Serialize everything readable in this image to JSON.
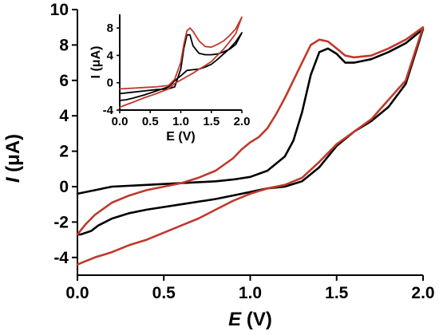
{
  "chart_data": [
    {
      "type": "line",
      "xlabel_symbol": "E",
      "xlabel_unit": " (V)",
      "ylabel_symbol": "I",
      "ylabel_unit": " (μA)",
      "xlim": [
        0.0,
        2.0
      ],
      "ylim": [
        -5,
        10
      ],
      "xticks": [
        "0.0",
        "0.5",
        "1.0",
        "1.5",
        "2.0"
      ],
      "yticks": [
        "-4",
        "-2",
        "0",
        "2",
        "4",
        "6",
        "8",
        "10"
      ],
      "grid": false,
      "series": [
        {
          "color": "#000000",
          "x": [
            0.0,
            0.2,
            0.4,
            0.6,
            0.8,
            0.9,
            1.0,
            1.1,
            1.2,
            1.25,
            1.3,
            1.35,
            1.4,
            1.45,
            1.5,
            1.55,
            1.6,
            1.7,
            1.8,
            1.9,
            2.0,
            1.9,
            1.8,
            1.7,
            1.6,
            1.5,
            1.4,
            1.3,
            1.2,
            1.1,
            1.0,
            0.9,
            0.8,
            0.6,
            0.4,
            0.3,
            0.2,
            0.12,
            0.08,
            0.05,
            0.02,
            0.0
          ],
          "y": [
            -0.4,
            0.0,
            0.1,
            0.2,
            0.3,
            0.4,
            0.55,
            0.9,
            1.7,
            2.6,
            4.2,
            6.3,
            7.6,
            7.8,
            7.5,
            7.0,
            7.0,
            7.2,
            7.6,
            8.1,
            8.9,
            5.8,
            4.5,
            3.7,
            3.1,
            2.3,
            1.1,
            0.3,
            0.0,
            -0.1,
            -0.3,
            -0.5,
            -0.7,
            -1.0,
            -1.3,
            -1.5,
            -1.8,
            -2.2,
            -2.5,
            -2.6,
            -2.7,
            -2.7
          ]
        },
        {
          "color": "#c0392b",
          "x": [
            0.0,
            0.05,
            0.1,
            0.2,
            0.3,
            0.4,
            0.5,
            0.6,
            0.7,
            0.8,
            0.9,
            0.95,
            1.0,
            1.05,
            1.1,
            1.15,
            1.2,
            1.3,
            1.35,
            1.4,
            1.45,
            1.5,
            1.55,
            1.6,
            1.7,
            1.8,
            1.9,
            2.0,
            1.9,
            1.8,
            1.7,
            1.6,
            1.5,
            1.4,
            1.3,
            1.2,
            1.1,
            1.0,
            0.9,
            0.8,
            0.7,
            0.6,
            0.5,
            0.4,
            0.3,
            0.2,
            0.1,
            0.05,
            0.0
          ],
          "y": [
            -2.7,
            -2.1,
            -1.6,
            -0.9,
            -0.5,
            -0.2,
            0.0,
            0.2,
            0.5,
            0.9,
            1.6,
            2.1,
            2.5,
            2.8,
            3.3,
            4.1,
            5.0,
            7.0,
            8.0,
            8.3,
            8.2,
            7.8,
            7.4,
            7.3,
            7.4,
            7.8,
            8.3,
            9.0,
            6.0,
            4.9,
            3.8,
            3.1,
            2.4,
            1.4,
            0.5,
            0.1,
            -0.1,
            -0.4,
            -0.8,
            -1.3,
            -1.8,
            -2.2,
            -2.6,
            -3.0,
            -3.3,
            -3.7,
            -4.0,
            -4.2,
            -4.4
          ]
        }
      ]
    },
    {
      "type": "line",
      "xlabel": "E (V)",
      "ylabel": "I (μA)",
      "xlim": [
        0.0,
        2.0
      ],
      "ylim": [
        -4,
        10
      ],
      "xticks": [
        "0.0",
        "0.5",
        "1.0",
        "1.5",
        "2.0"
      ],
      "yticks": [
        "-4",
        "0",
        "4",
        "8"
      ],
      "grid": false,
      "series": [
        {
          "color": "#000000",
          "x": [
            0.0,
            0.2,
            0.4,
            0.6,
            0.8,
            0.9,
            1.0,
            1.05,
            1.1,
            1.15,
            1.2,
            1.3,
            1.4,
            1.5,
            1.6,
            1.7,
            1.8,
            1.9,
            2.0,
            1.9,
            1.8,
            1.7,
            1.6,
            1.5,
            1.4,
            1.3,
            1.2,
            1.1,
            1.0,
            0.9,
            0.8,
            0.6,
            0.4,
            0.2,
            0.1,
            0.0
          ],
          "y": [
            -1.6,
            -1.4,
            -1.2,
            -1.0,
            -0.9,
            -0.6,
            2.0,
            5.0,
            7.0,
            7.0,
            5.4,
            4.3,
            4.1,
            4.1,
            4.2,
            4.5,
            4.9,
            5.6,
            7.3,
            6.0,
            5.0,
            4.2,
            3.4,
            2.7,
            2.3,
            2.0,
            1.9,
            1.8,
            1.0,
            0.3,
            -0.6,
            -1.2,
            -1.8,
            -2.3,
            -2.5,
            -2.6
          ]
        },
        {
          "color": "#c0392b",
          "x": [
            0.0,
            0.2,
            0.4,
            0.6,
            0.8,
            0.9,
            1.0,
            1.05,
            1.1,
            1.15,
            1.2,
            1.3,
            1.4,
            1.5,
            1.6,
            1.7,
            1.8,
            1.9,
            2.0,
            1.9,
            1.8,
            1.7,
            1.6,
            1.5,
            1.4,
            1.3,
            1.2,
            1.1,
            1.0,
            0.9,
            0.8,
            0.6,
            0.4,
            0.2,
            0.05,
            0.0
          ],
          "y": [
            -0.9,
            -0.8,
            -0.7,
            -0.6,
            -0.4,
            0.5,
            3.0,
            5.6,
            7.6,
            8.0,
            7.5,
            6.1,
            5.3,
            5.2,
            5.6,
            6.1,
            6.9,
            7.9,
            9.6,
            7.2,
            6.0,
            4.9,
            4.0,
            3.1,
            2.5,
            2.0,
            1.4,
            0.9,
            0.4,
            -0.1,
            -0.9,
            -1.6,
            -2.2,
            -2.9,
            -3.4,
            -3.6
          ]
        }
      ]
    }
  ]
}
